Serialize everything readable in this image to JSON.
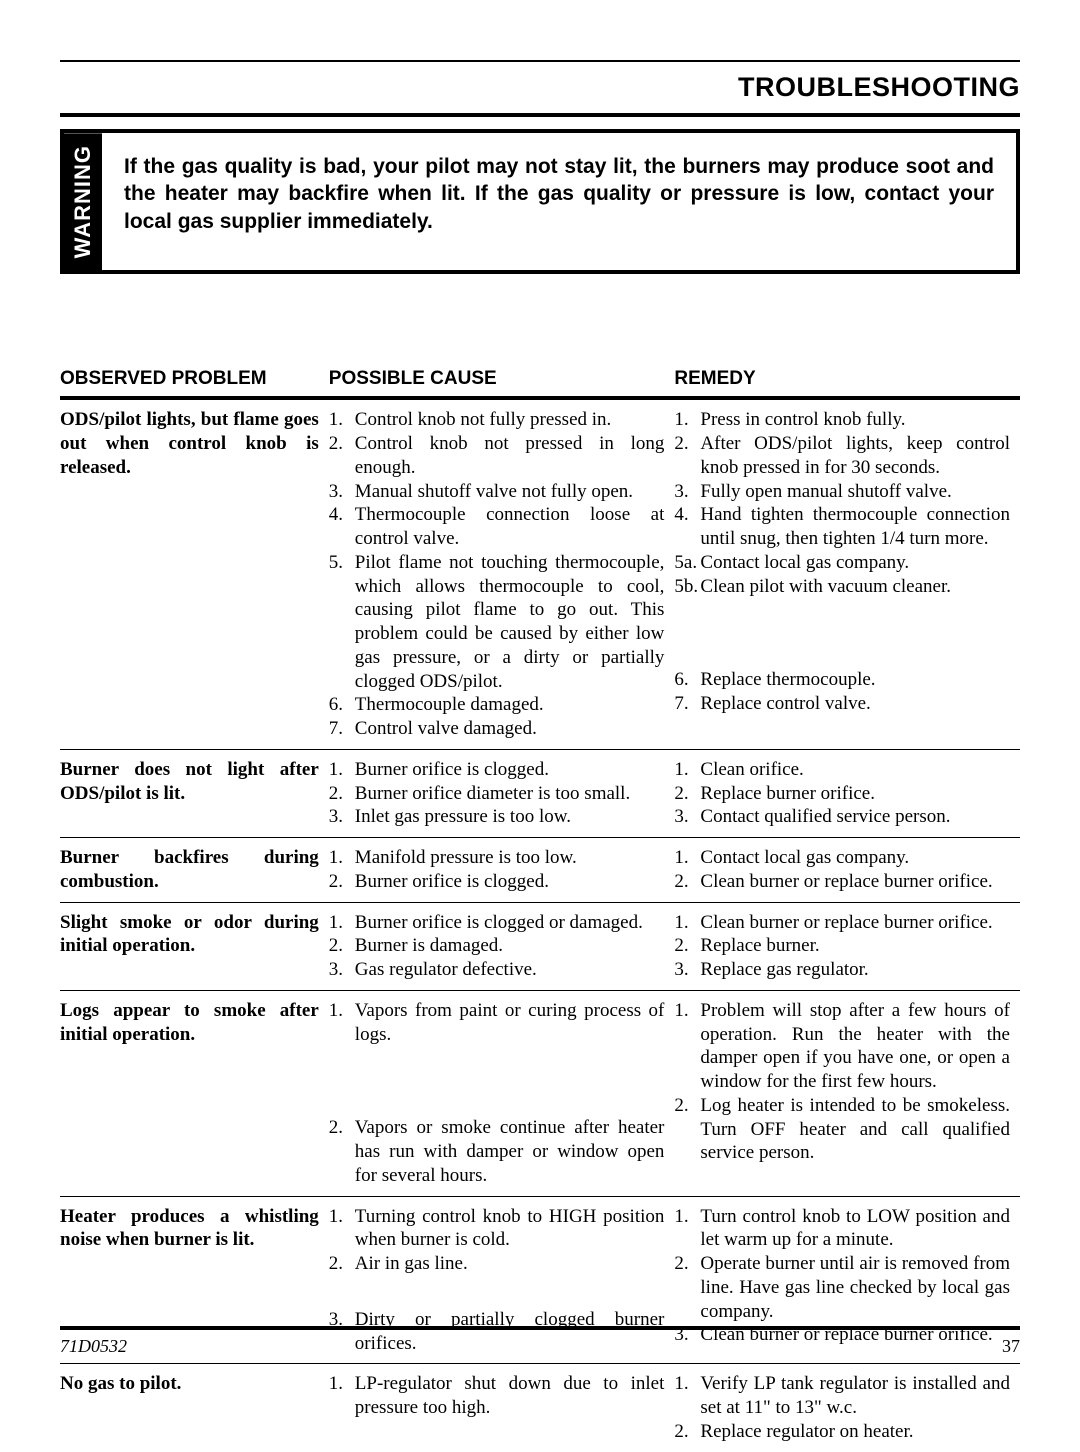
{
  "section_title": "TROUBLESHOOTING",
  "warning_label": "WARNING",
  "warning_text": "If the gas quality is bad, your pilot may not stay lit, the burners may produce soot and the heater may backfire when lit. If the gas quality or pressure is low, contact your local gas supplier immediately.",
  "headers": {
    "problem": "OBSERVED PROBLEM",
    "cause": "POSSIBLE CAUSE",
    "remedy": "REMEDY"
  },
  "rows": [
    {
      "problem": "ODS/pilot lights, but flame goes out when control knob is released.",
      "causes": [
        "Control knob not fully pressed in.",
        "Control knob not pressed in long enough.",
        "Manual shutoff valve not fully open.",
        "Thermocouple connection loose at control valve.",
        "Pilot flame not touching thermocouple, which allows thermocouple to cool, causing pilot flame to go out. This problem could be caused by either low gas pressure, or a dirty or partially clogged ODS/pilot.",
        "Thermocouple damaged.",
        "Control valve damaged."
      ],
      "remedies": [
        {
          "m": "1.",
          "t": "Press in control knob fully."
        },
        {
          "m": "2.",
          "t": "After ODS/pilot lights, keep control knob pressed in for 30 seconds."
        },
        {
          "m": "3.",
          "t": "Fully open manual shutoff valve."
        },
        {
          "m": "4.",
          "t": "Hand tighten thermocouple connection until snug, then tighten 1/4 turn more."
        },
        {
          "m": "5a.",
          "t": "Contact local gas company."
        },
        {
          "m": "5b.",
          "t": "Clean pilot with vacuum cleaner."
        },
        {
          "m": "6.",
          "t": "Replace thermocouple."
        },
        {
          "m": "7.",
          "t": "Replace control valve."
        }
      ],
      "remedy_spacer_after_index": 5
    },
    {
      "problem": "Burner does not light after ODS/pilot is lit.",
      "causes": [
        "Burner orifice is clogged.",
        "Burner orifice diameter is too small.",
        "Inlet gas pressure is too low."
      ],
      "remedies": [
        {
          "m": "1.",
          "t": "Clean orifice."
        },
        {
          "m": "2.",
          "t": "Replace burner orifice."
        },
        {
          "m": "3.",
          "t": "Contact qualified service person."
        }
      ]
    },
    {
      "problem": "Burner backfires during combustion.",
      "causes": [
        "Manifold pressure is too low.",
        "Burner orifice is clogged."
      ],
      "remedies": [
        {
          "m": "1.",
          "t": "Contact local gas company."
        },
        {
          "m": "2.",
          "t": "Clean burner or replace burner orifice."
        }
      ]
    },
    {
      "problem": "Slight smoke or odor during initial operation.",
      "causes": [
        "Burner orifice is clogged or damaged.",
        "Burner is damaged.",
        "Gas regulator defective."
      ],
      "remedies": [
        {
          "m": "1.",
          "t": "Clean burner or replace burner orifice."
        },
        {
          "m": "2.",
          "t": "Replace burner."
        },
        {
          "m": "3.",
          "t": "Replace gas regulator."
        }
      ]
    },
    {
      "problem": "Logs appear to smoke after initial operation.",
      "causes": [
        "Vapors from paint or curing process of logs.",
        "Vapors or smoke continue after heater has run with damper or window open for several hours."
      ],
      "remedies": [
        {
          "m": "1.",
          "t": "Problem will stop after a few hours of operation. Run the heater with the damper open if you have one, or open a window for the first few hours."
        },
        {
          "m": "2.",
          "t": "Log heater is intended to be smokeless. Turn OFF heater and call qualified service person."
        }
      ],
      "cause_spacer_after_index": 0
    },
    {
      "problem": "Heater produces a whistling noise when burner is lit.",
      "causes": [
        "Turning control knob to HIGH position when burner is cold.",
        "Air in gas line.",
        "Dirty or partially clogged burner orifices."
      ],
      "remedies": [
        {
          "m": "1.",
          "t": "Turn control knob to LOW position and let warm up for a minute."
        },
        {
          "m": "2.",
          "t": "Operate burner until air is removed from line. Have gas line checked by local gas company."
        },
        {
          "m": "3.",
          "t": "Clean burner or replace burner orifice."
        }
      ],
      "cause_spacer_after_index": 1
    },
    {
      "problem": "No gas to pilot.",
      "causes": [
        "LP-regulator shut down due to inlet pressure too high."
      ],
      "remedies": [
        {
          "m": "1.",
          "t": "Verify LP tank regulator is installed and set at 11\" to 13\" w.c."
        },
        {
          "m": "2.",
          "t": "Replace regulator on heater."
        }
      ],
      "last": true
    }
  ],
  "footer": {
    "doc": "71D0532",
    "page": "37"
  }
}
